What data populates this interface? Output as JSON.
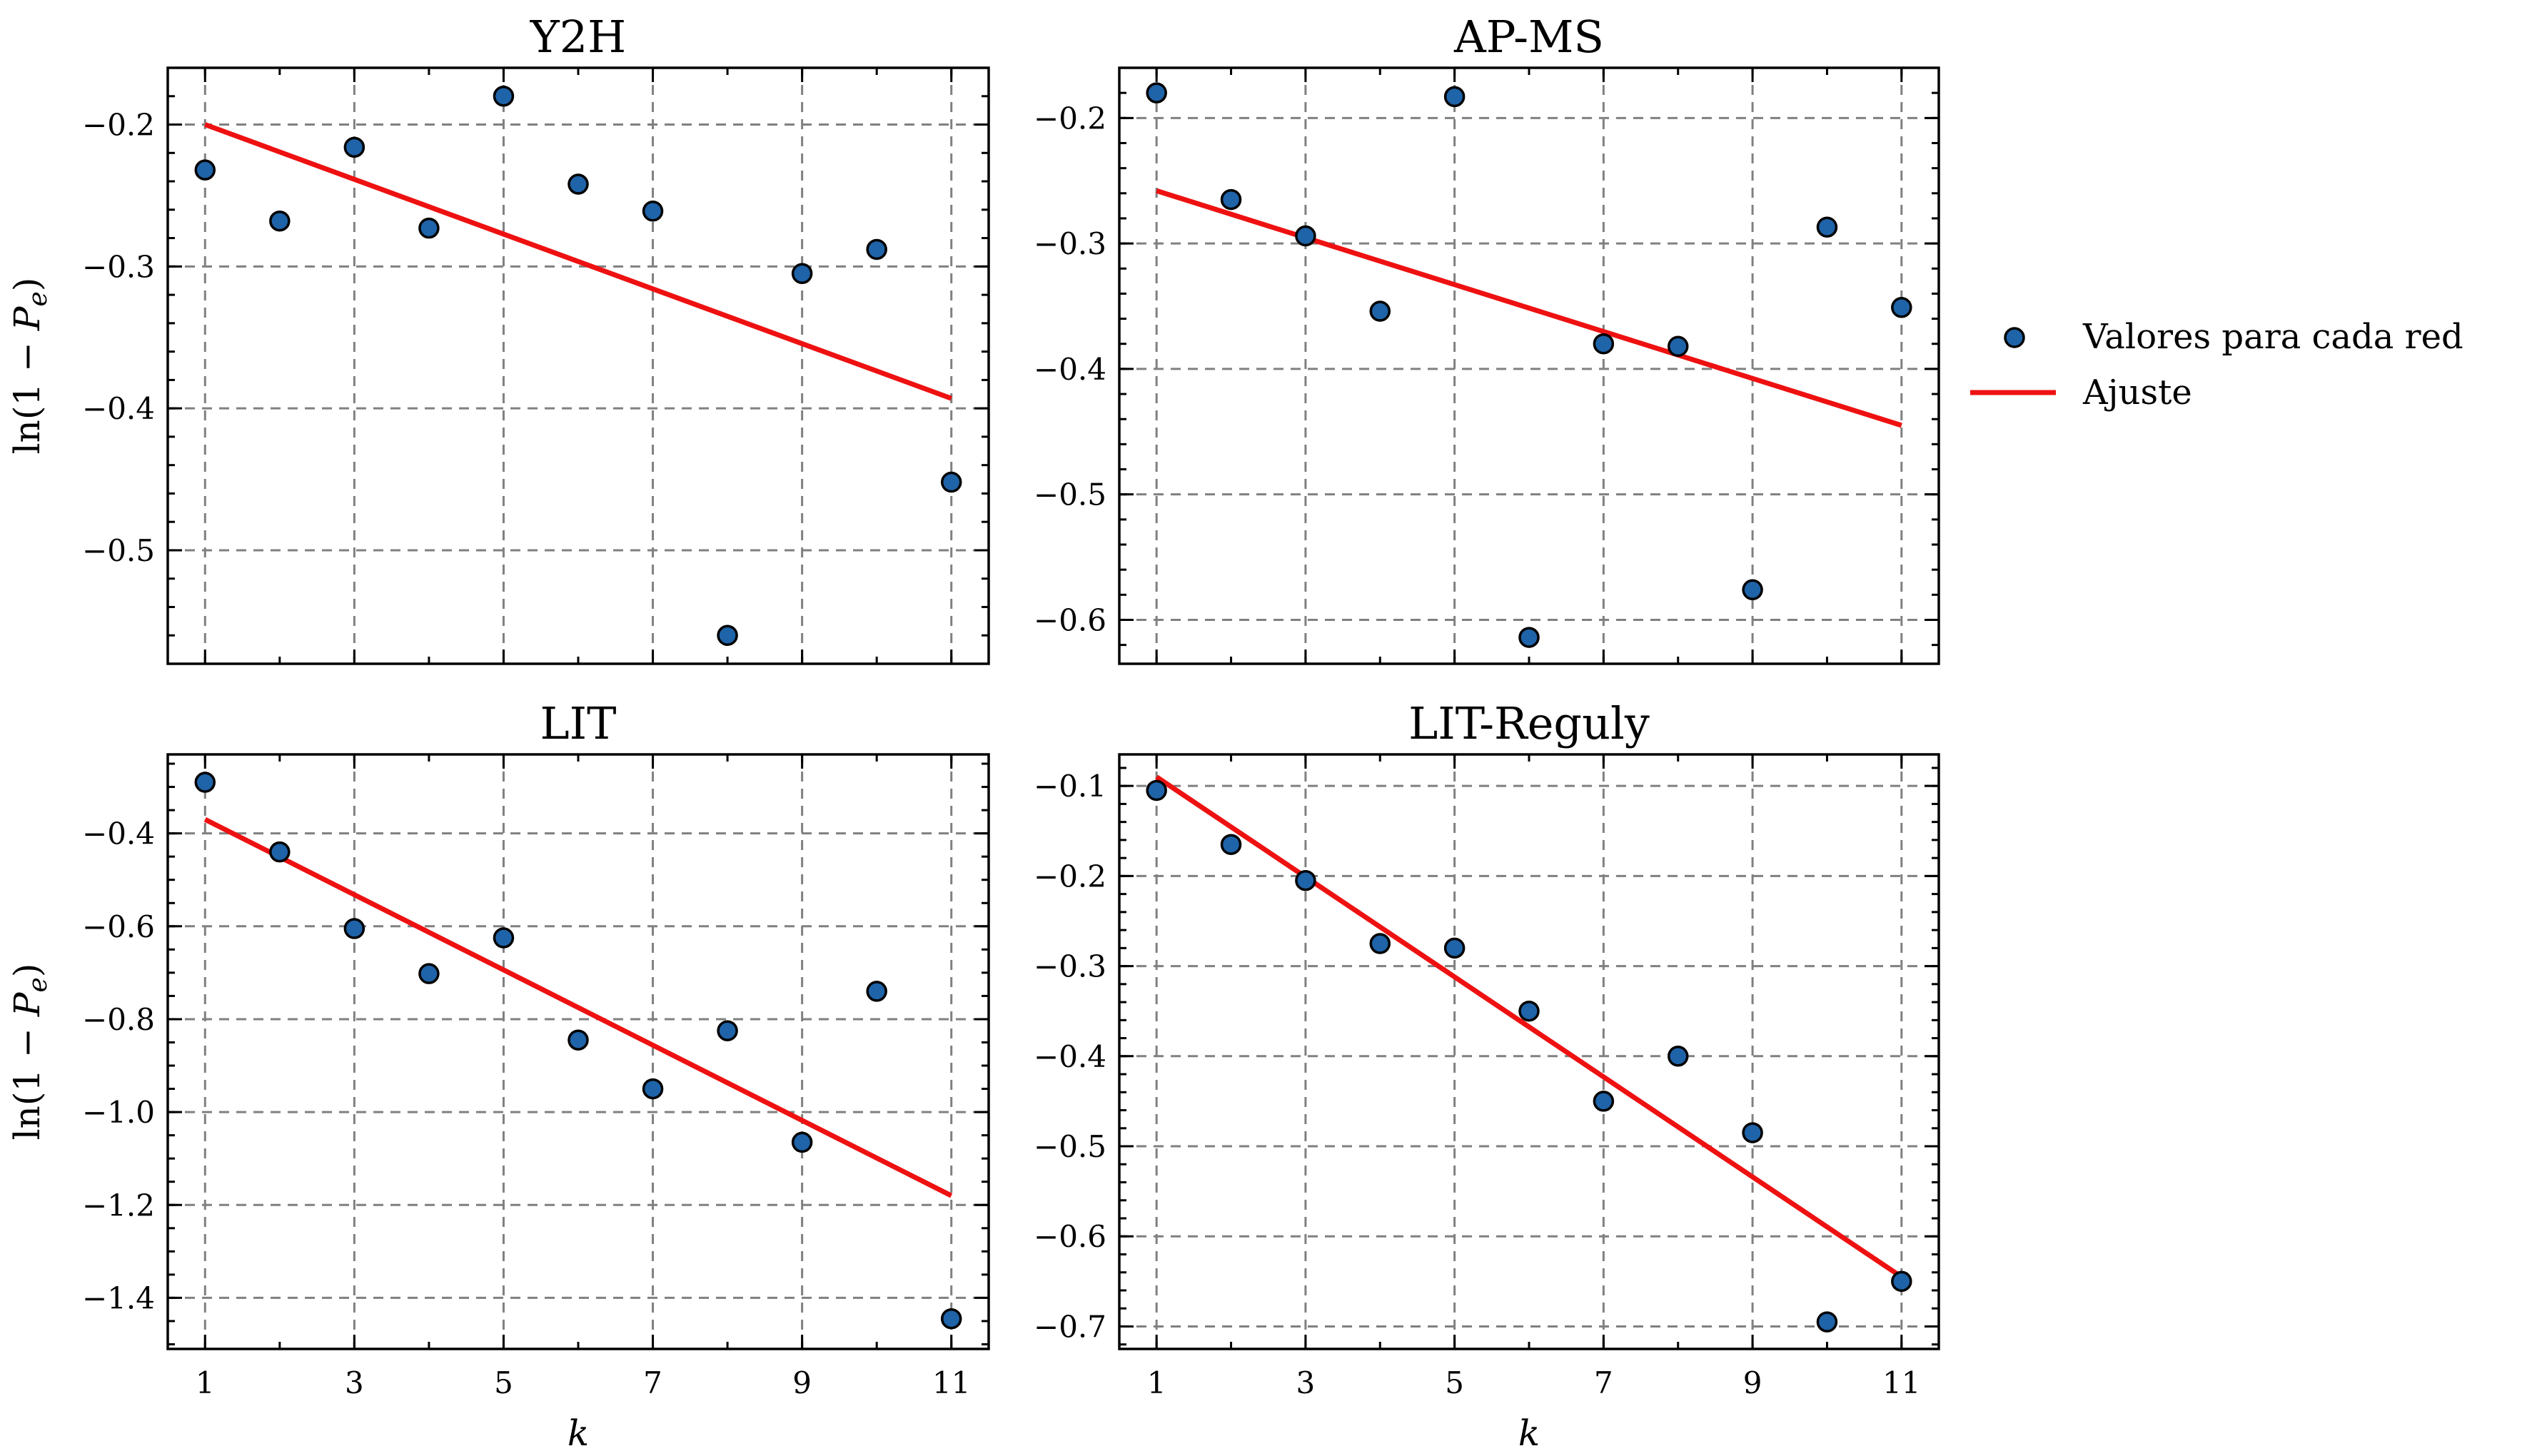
{
  "chart_data": [
    {
      "type": "scatter",
      "title": "Y2H",
      "x": [
        1,
        2,
        3,
        4,
        5,
        6,
        7,
        8,
        9,
        10,
        11
      ],
      "y": [
        -0.232,
        -0.268,
        -0.216,
        -0.273,
        -0.18,
        -0.242,
        -0.261,
        -0.56,
        -0.305,
        -0.288,
        -0.452
      ],
      "fit": {
        "x": [
          1,
          11
        ],
        "y": [
          -0.2,
          -0.393
        ]
      },
      "xlim": [
        0.5,
        11.5
      ],
      "ylim": [
        -0.58,
        -0.16
      ],
      "yticks": [
        -0.5,
        -0.4,
        -0.3,
        -0.2
      ],
      "ytick_labels": [
        "−0.5",
        "−0.4",
        "−0.3",
        "−0.2"
      ],
      "xticks": [
        1,
        3,
        5,
        7,
        9,
        11
      ],
      "xtick_labels": [
        "1",
        "3",
        "5",
        "7",
        "9",
        "11"
      ],
      "yminor": 0.02,
      "ylabel": "ln(1 − P_e)",
      "xlabel": "",
      "show_xticklabels": false
    },
    {
      "type": "scatter",
      "title": "AP-MS",
      "x": [
        1,
        2,
        3,
        4,
        5,
        6,
        7,
        8,
        9,
        10,
        11
      ],
      "y": [
        -0.18,
        -0.265,
        -0.294,
        -0.354,
        -0.183,
        -0.614,
        -0.38,
        -0.382,
        -0.576,
        -0.287,
        -0.351
      ],
      "fit": {
        "x": [
          1,
          11
        ],
        "y": [
          -0.258,
          -0.445
        ]
      },
      "xlim": [
        0.5,
        11.5
      ],
      "ylim": [
        -0.635,
        -0.16
      ],
      "yticks": [
        -0.6,
        -0.5,
        -0.4,
        -0.3,
        -0.2
      ],
      "ytick_labels": [
        "−0.6",
        "−0.5",
        "−0.4",
        "−0.3",
        "−0.2"
      ],
      "xticks": [
        1,
        3,
        5,
        7,
        9,
        11
      ],
      "xtick_labels": [
        "1",
        "3",
        "5",
        "7",
        "9",
        "11"
      ],
      "yminor": 0.02,
      "ylabel": "",
      "xlabel": "",
      "show_xticklabels": false
    },
    {
      "type": "scatter",
      "title": "LIT",
      "x": [
        1,
        2,
        3,
        4,
        5,
        6,
        7,
        8,
        9,
        10,
        11
      ],
      "y": [
        -0.29,
        -0.44,
        -0.605,
        -0.702,
        -0.625,
        -0.845,
        -0.95,
        -0.825,
        -1.065,
        -0.74,
        -1.445
      ],
      "fit": {
        "x": [
          1,
          11
        ],
        "y": [
          -0.37,
          -1.18
        ]
      },
      "xlim": [
        0.5,
        11.5
      ],
      "ylim": [
        -1.51,
        -0.23
      ],
      "yticks": [
        -1.4,
        -1.2,
        -1.0,
        -0.8,
        -0.6,
        -0.4
      ],
      "ytick_labels": [
        "−1.4",
        "−1.2",
        "−1.0",
        "−0.8",
        "−0.6",
        "−0.4"
      ],
      "xticks": [
        1,
        3,
        5,
        7,
        9,
        11
      ],
      "xtick_labels": [
        "1",
        "3",
        "5",
        "7",
        "9",
        "11"
      ],
      "yminor": 0.05,
      "ylabel": "ln(1 − P_e)",
      "xlabel": "k",
      "show_xticklabels": true
    },
    {
      "type": "scatter",
      "title": "LIT-Reguly",
      "x": [
        1,
        2,
        3,
        4,
        5,
        6,
        7,
        8,
        9,
        10,
        11
      ],
      "y": [
        -0.105,
        -0.165,
        -0.205,
        -0.275,
        -0.28,
        -0.35,
        -0.45,
        -0.4,
        -0.485,
        -0.695,
        -0.65
      ],
      "fit": {
        "x": [
          1,
          11
        ],
        "y": [
          -0.09,
          -0.645
        ]
      },
      "xlim": [
        0.5,
        11.5
      ],
      "ylim": [
        -0.725,
        -0.065
      ],
      "yticks": [
        -0.7,
        -0.6,
        -0.5,
        -0.4,
        -0.3,
        -0.2,
        -0.1
      ],
      "ytick_labels": [
        "−0.7",
        "−0.6",
        "−0.5",
        "−0.4",
        "−0.3",
        "−0.2",
        "−0.1"
      ],
      "xticks": [
        1,
        3,
        5,
        7,
        9,
        11
      ],
      "xtick_labels": [
        "1",
        "3",
        "5",
        "7",
        "9",
        "11"
      ],
      "yminor": 0.02,
      "ylabel": "",
      "xlabel": "k",
      "show_xticklabels": true
    }
  ],
  "legend": {
    "placement": "right",
    "entries": [
      {
        "label": "Valores para cada red",
        "kind": "marker"
      },
      {
        "label": "Ajuste",
        "kind": "line"
      }
    ]
  },
  "colors": {
    "points": "#1f63a8",
    "fit": "#ee1111",
    "grid": "#808080"
  }
}
